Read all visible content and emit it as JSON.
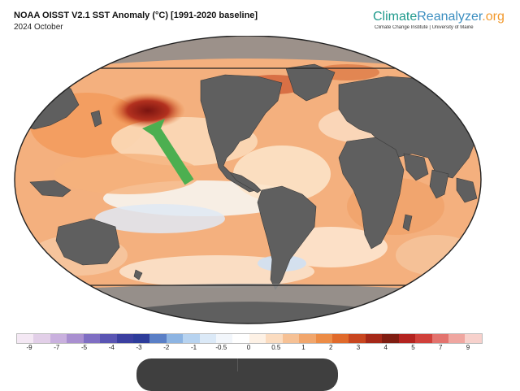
{
  "header": {
    "title": "NOAA OISST V2.1 SST Anomaly (°C) [1991-2020 baseline]",
    "subtitle": "2024 October"
  },
  "brand": {
    "name_part1": "Climate",
    "name_part2": "Reanalyzer",
    "name_part3": ".org",
    "tagline": "Climate Change Institute | University of Maine"
  },
  "map": {
    "projection": "Robinson-like world",
    "ocean_color": "#f4b07e",
    "land_color": "#5f5f5f",
    "sea_ice_color": "#8c8c8c",
    "arrow_color": "#4caf50",
    "hotspot": "North Pacific"
  },
  "colorbar": {
    "labels": [
      "-9",
      "-7",
      "-5",
      "-4",
      "-3",
      "-2",
      "-1",
      "-0.5",
      "0",
      "0.5",
      "1",
      "2",
      "3",
      "4",
      "5",
      "7",
      "9"
    ],
    "colors": [
      "#f4e8f4",
      "#e2cfe8",
      "#c9b0de",
      "#a98fd0",
      "#7f6ec3",
      "#5a55b3",
      "#3b3fa0",
      "#2d3c9a",
      "#5a7fc6",
      "#8db4e2",
      "#b7d3f0",
      "#dbe9f7",
      "#f2f6fb",
      "#ffffff",
      "#fdf1e5",
      "#fbdcc0",
      "#f6c195",
      "#f1a66c",
      "#ec8c46",
      "#e06a2b",
      "#c8461f",
      "#a52818",
      "#7f1d11",
      "#b3231f",
      "#d0403a",
      "#e3736e",
      "#efa6a0",
      "#f7d1cc"
    ]
  }
}
